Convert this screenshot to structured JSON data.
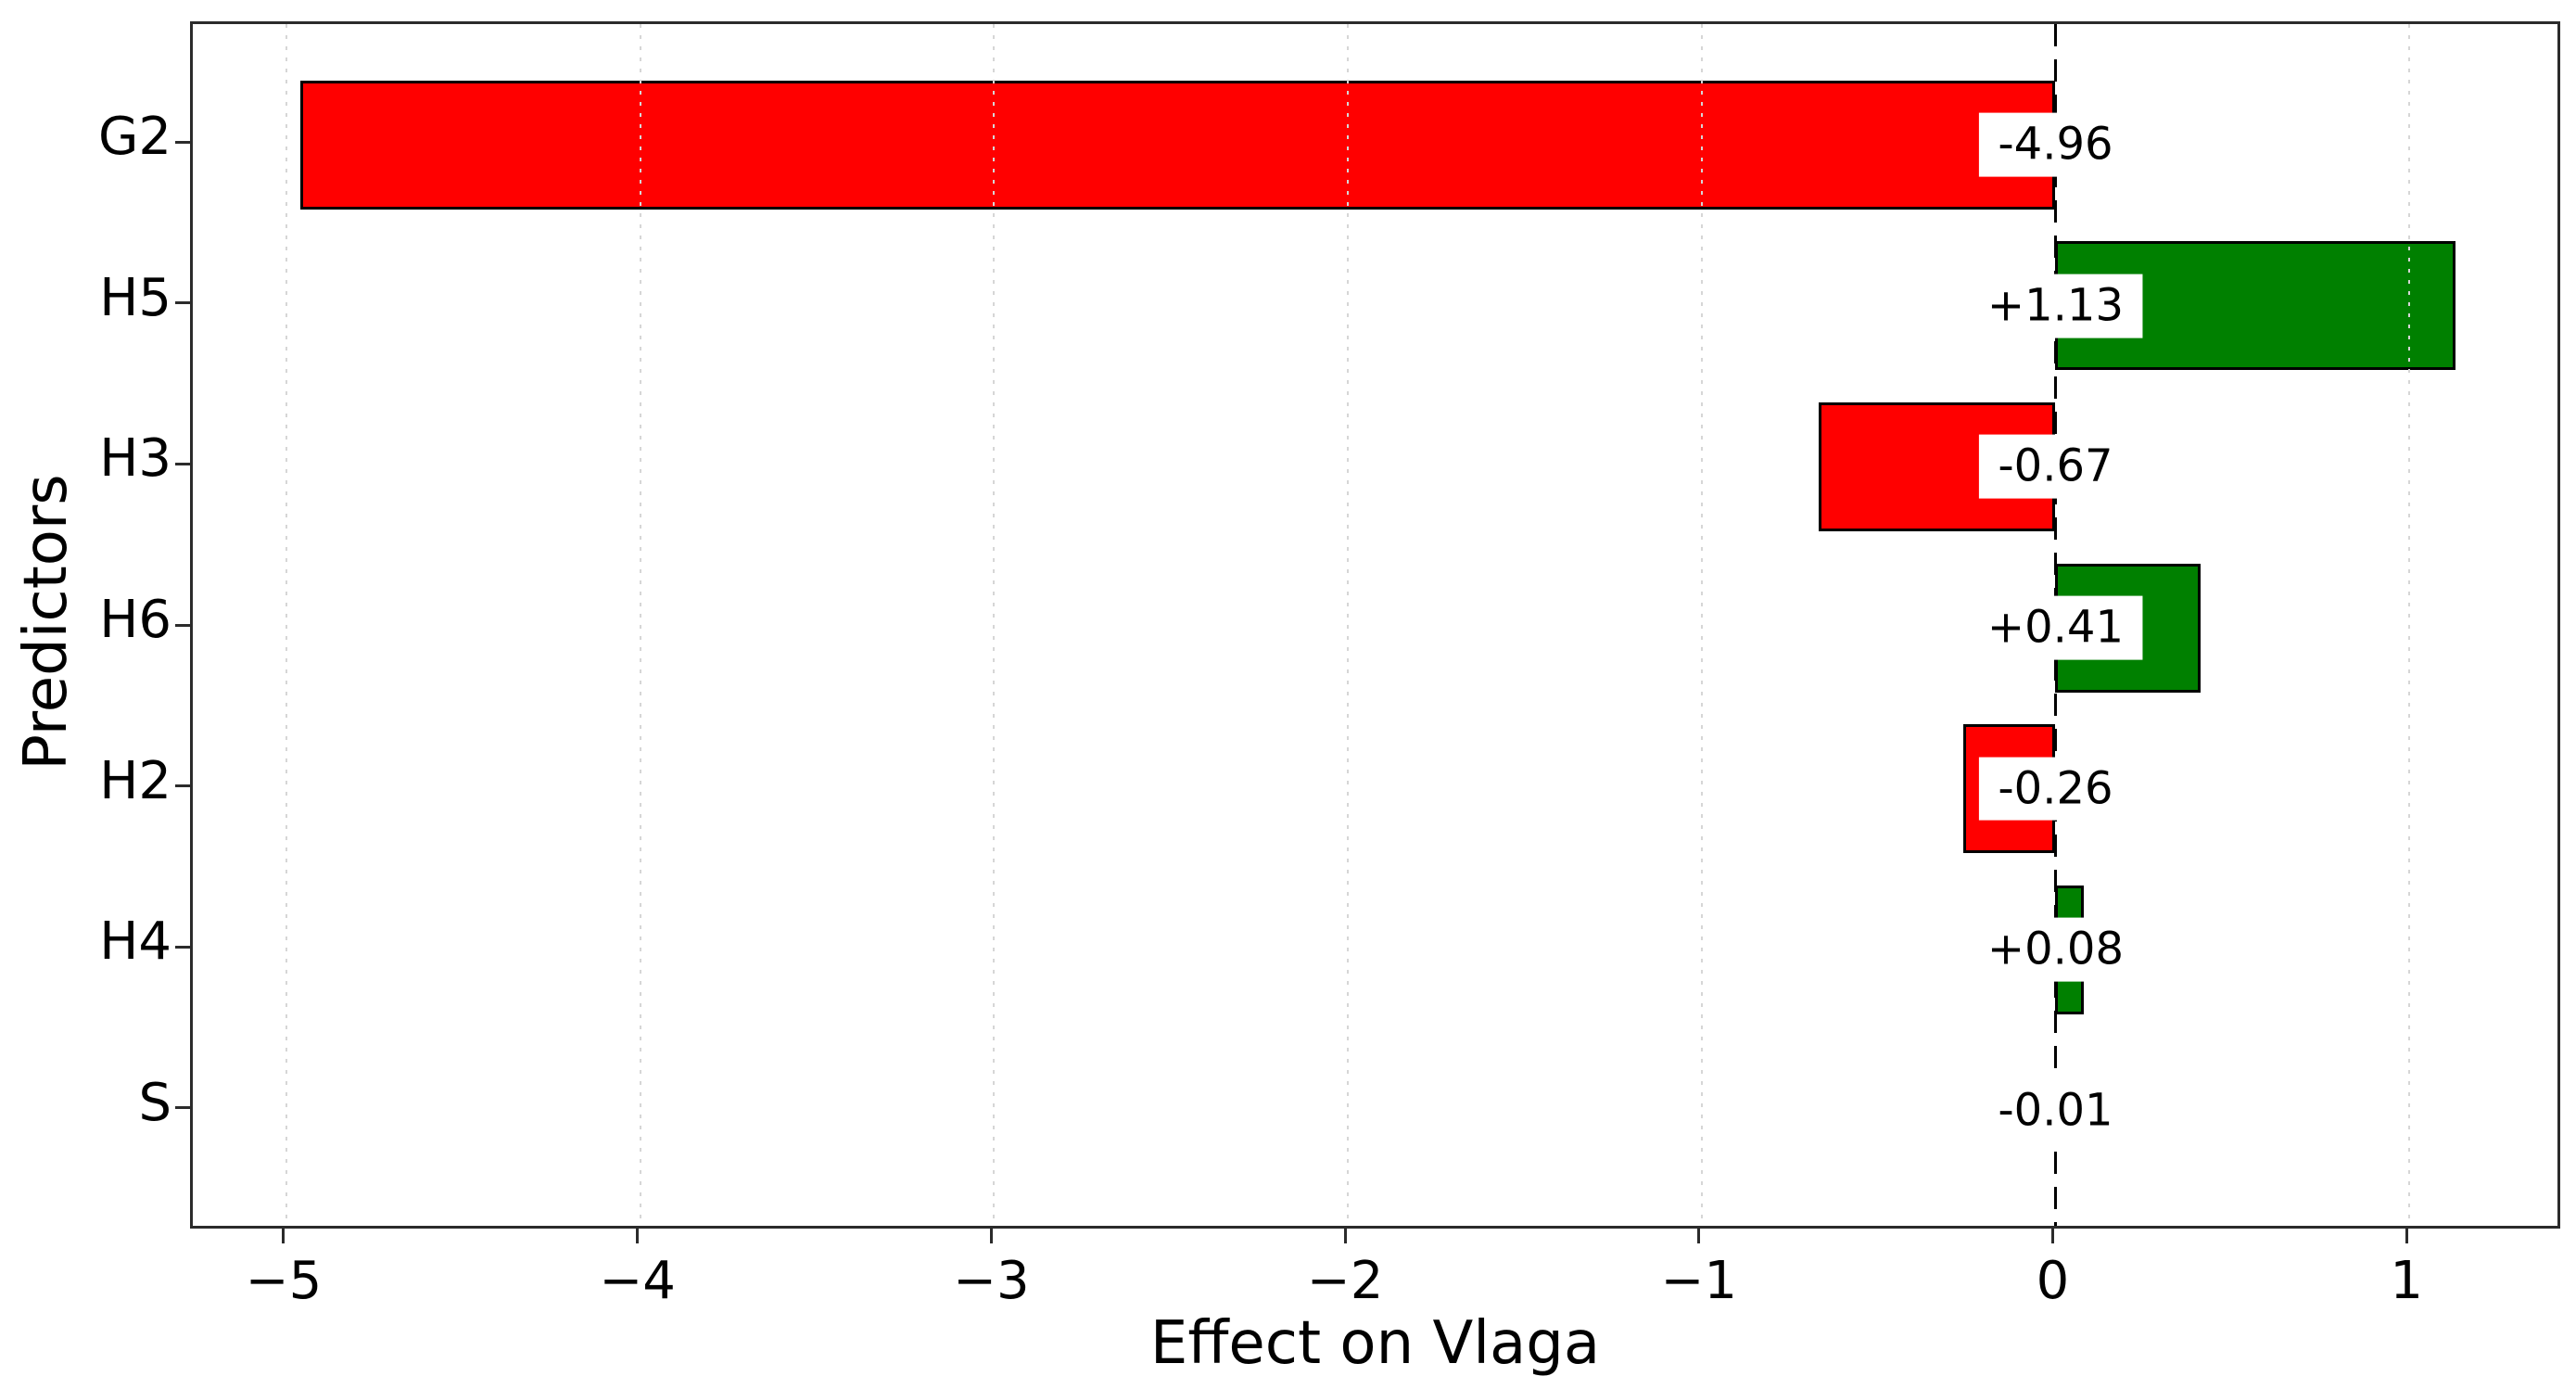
{
  "chart_data": {
    "type": "bar",
    "orientation": "horizontal",
    "xlabel": "Effect on Vlaga",
    "ylabel": "Predictors",
    "categories": [
      "G2",
      "H5",
      "H3",
      "H6",
      "H2",
      "H4",
      "S"
    ],
    "values": [
      -4.96,
      1.13,
      -0.67,
      0.41,
      -0.26,
      0.08,
      -0.01
    ],
    "bar_value_labels": [
      "-4.96",
      "+1.13",
      "-0.67",
      "+0.41",
      "-0.26",
      "+0.08",
      "-0.01"
    ],
    "xlim": [
      -5.2645,
      1.4345
    ],
    "x_ticks": [
      -5,
      -4,
      -3,
      -2,
      -1,
      0,
      1
    ],
    "x_tick_labels": [
      "−5",
      "−4",
      "−3",
      "−2",
      "−1",
      "0",
      "1"
    ],
    "grid": {
      "axis": "x",
      "style": "dotted",
      "on": true
    },
    "zero_line": {
      "x": 0,
      "style": "dashed"
    },
    "legend_position": "none",
    "colors": {
      "positive_bar": "#008000",
      "negative_bar": "#ff0000",
      "bar_edge": "#000000",
      "value_label_bg": "#ffffff",
      "grid": "#d6d6d6",
      "zero_line": "#000000",
      "spine": "#2b2b2b",
      "text": "#000000",
      "background": "#ffffff"
    }
  }
}
